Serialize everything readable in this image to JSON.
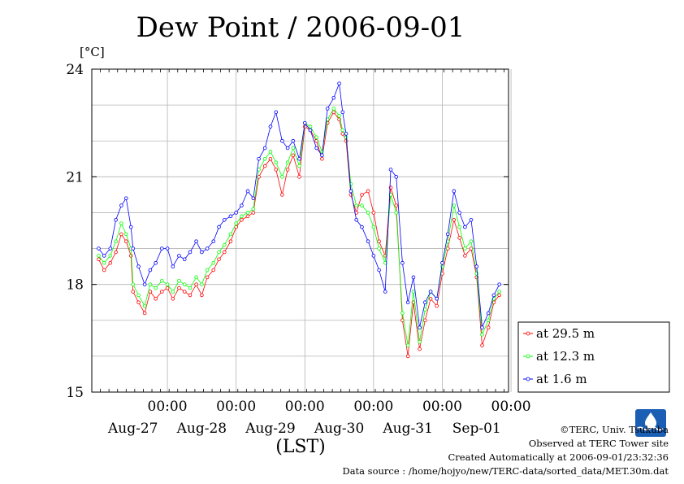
{
  "chart_data": {
    "type": "line",
    "title": "Dew Point / 2006-09-01",
    "ylabel": "[°C]",
    "xlabel": "(LST)",
    "ylim": [
      15,
      24
    ],
    "yticks": [
      15,
      18,
      21,
      24
    ],
    "xlim": [
      0,
      6
    ],
    "day_ticks": [
      {
        "x": 1,
        "time": "00:00",
        "date": "Aug-27"
      },
      {
        "x": 2,
        "time": "00:00",
        "date": "Aug-28"
      },
      {
        "x": 3,
        "time": "00:00",
        "date": "Aug-29"
      },
      {
        "x": 4,
        "time": "00:00",
        "date": "Aug-30"
      },
      {
        "x": 5,
        "time": "00:00",
        "date": "Aug-31"
      },
      {
        "x": 6,
        "time": "00:00",
        "date": "Sep-01"
      }
    ],
    "grid": true,
    "legend_position": "bottom-right-outside",
    "series": [
      {
        "name": "at 29.5 m",
        "color": "#ff0000",
        "points": [
          [
            0.0,
            18.7
          ],
          [
            0.08,
            18.4
          ],
          [
            0.17,
            18.6
          ],
          [
            0.25,
            18.9
          ],
          [
            0.33,
            19.4
          ],
          [
            0.4,
            19.2
          ],
          [
            0.47,
            18.8
          ],
          [
            0.5,
            17.8
          ],
          [
            0.58,
            17.5
          ],
          [
            0.67,
            17.2
          ],
          [
            0.75,
            17.8
          ],
          [
            0.83,
            17.6
          ],
          [
            0.92,
            17.8
          ],
          [
            1.0,
            17.9
          ],
          [
            1.08,
            17.6
          ],
          [
            1.17,
            17.9
          ],
          [
            1.25,
            17.8
          ],
          [
            1.33,
            17.7
          ],
          [
            1.42,
            18.0
          ],
          [
            1.5,
            17.7
          ],
          [
            1.58,
            18.2
          ],
          [
            1.67,
            18.4
          ],
          [
            1.75,
            18.7
          ],
          [
            1.83,
            18.9
          ],
          [
            1.92,
            19.2
          ],
          [
            2.0,
            19.6
          ],
          [
            2.08,
            19.8
          ],
          [
            2.17,
            19.9
          ],
          [
            2.25,
            20.0
          ],
          [
            2.33,
            21.0
          ],
          [
            2.42,
            21.3
          ],
          [
            2.5,
            21.5
          ],
          [
            2.58,
            21.2
          ],
          [
            2.67,
            20.5
          ],
          [
            2.75,
            21.2
          ],
          [
            2.83,
            21.6
          ],
          [
            2.92,
            21.0
          ],
          [
            3.0,
            22.4
          ],
          [
            3.08,
            22.3
          ],
          [
            3.17,
            22.0
          ],
          [
            3.25,
            21.5
          ],
          [
            3.33,
            22.5
          ],
          [
            3.42,
            22.8
          ],
          [
            3.5,
            22.6
          ],
          [
            3.55,
            22.2
          ],
          [
            3.6,
            22.0
          ],
          [
            3.67,
            20.5
          ],
          [
            3.75,
            20.0
          ],
          [
            3.83,
            20.5
          ],
          [
            3.92,
            20.6
          ],
          [
            4.0,
            20.0
          ],
          [
            4.08,
            19.2
          ],
          [
            4.17,
            18.8
          ],
          [
            4.25,
            20.7
          ],
          [
            4.33,
            20.2
          ],
          [
            4.42,
            17.0
          ],
          [
            4.5,
            16.0
          ],
          [
            4.58,
            17.5
          ],
          [
            4.67,
            16.2
          ],
          [
            4.75,
            17.0
          ],
          [
            4.83,
            17.6
          ],
          [
            4.92,
            17.4
          ],
          [
            5.0,
            18.3
          ],
          [
            5.08,
            19.0
          ],
          [
            5.17,
            19.8
          ],
          [
            5.25,
            19.3
          ],
          [
            5.33,
            18.8
          ],
          [
            5.42,
            19.0
          ],
          [
            5.5,
            18.2
          ],
          [
            5.58,
            16.3
          ],
          [
            5.67,
            16.8
          ],
          [
            5.75,
            17.5
          ],
          [
            5.83,
            17.7
          ]
        ]
      },
      {
        "name": "at 12.3 m",
        "color": "#00ff00",
        "points": [
          [
            0.0,
            18.8
          ],
          [
            0.08,
            18.6
          ],
          [
            0.17,
            18.8
          ],
          [
            0.25,
            19.2
          ],
          [
            0.33,
            19.7
          ],
          [
            0.4,
            19.4
          ],
          [
            0.47,
            19.0
          ],
          [
            0.5,
            18.0
          ],
          [
            0.58,
            17.7
          ],
          [
            0.67,
            17.4
          ],
          [
            0.75,
            18.0
          ],
          [
            0.83,
            17.9
          ],
          [
            0.92,
            18.1
          ],
          [
            1.0,
            18.0
          ],
          [
            1.08,
            17.8
          ],
          [
            1.17,
            18.1
          ],
          [
            1.25,
            18.0
          ],
          [
            1.33,
            17.9
          ],
          [
            1.42,
            18.2
          ],
          [
            1.5,
            18.0
          ],
          [
            1.58,
            18.4
          ],
          [
            1.67,
            18.6
          ],
          [
            1.75,
            18.9
          ],
          [
            1.83,
            19.1
          ],
          [
            1.92,
            19.4
          ],
          [
            2.0,
            19.7
          ],
          [
            2.08,
            19.9
          ],
          [
            2.17,
            20.0
          ],
          [
            2.25,
            20.1
          ],
          [
            2.33,
            21.2
          ],
          [
            2.42,
            21.5
          ],
          [
            2.5,
            21.7
          ],
          [
            2.58,
            21.4
          ],
          [
            2.67,
            21.0
          ],
          [
            2.75,
            21.4
          ],
          [
            2.83,
            21.8
          ],
          [
            2.92,
            21.3
          ],
          [
            3.0,
            22.5
          ],
          [
            3.08,
            22.4
          ],
          [
            3.17,
            22.1
          ],
          [
            3.25,
            21.7
          ],
          [
            3.33,
            22.6
          ],
          [
            3.42,
            22.9
          ],
          [
            3.5,
            22.7
          ],
          [
            3.55,
            22.3
          ],
          [
            3.6,
            22.1
          ],
          [
            3.67,
            20.8
          ],
          [
            3.75,
            20.2
          ],
          [
            3.83,
            20.2
          ],
          [
            3.92,
            20.0
          ],
          [
            4.0,
            19.6
          ],
          [
            4.08,
            19.0
          ],
          [
            4.17,
            18.6
          ],
          [
            4.25,
            20.5
          ],
          [
            4.33,
            20.0
          ],
          [
            4.42,
            17.2
          ],
          [
            4.5,
            16.3
          ],
          [
            4.58,
            17.8
          ],
          [
            4.67,
            16.4
          ],
          [
            4.75,
            17.3
          ],
          [
            4.83,
            17.8
          ],
          [
            4.92,
            17.6
          ],
          [
            5.0,
            18.5
          ],
          [
            5.08,
            19.2
          ],
          [
            5.17,
            20.2
          ],
          [
            5.25,
            19.6
          ],
          [
            5.33,
            19.0
          ],
          [
            5.42,
            19.2
          ],
          [
            5.5,
            18.3
          ],
          [
            5.58,
            16.6
          ],
          [
            5.67,
            17.0
          ],
          [
            5.75,
            17.6
          ],
          [
            5.83,
            17.8
          ]
        ]
      },
      {
        "name": "at 1.6 m",
        "color": "#0000ff",
        "points": [
          [
            0.0,
            19.0
          ],
          [
            0.08,
            18.8
          ],
          [
            0.17,
            19.0
          ],
          [
            0.25,
            19.8
          ],
          [
            0.33,
            20.2
          ],
          [
            0.4,
            20.4
          ],
          [
            0.47,
            19.6
          ],
          [
            0.5,
            19.0
          ],
          [
            0.58,
            18.5
          ],
          [
            0.67,
            18.0
          ],
          [
            0.75,
            18.4
          ],
          [
            0.83,
            18.6
          ],
          [
            0.92,
            19.0
          ],
          [
            1.0,
            19.0
          ],
          [
            1.08,
            18.5
          ],
          [
            1.17,
            18.8
          ],
          [
            1.25,
            18.7
          ],
          [
            1.33,
            18.9
          ],
          [
            1.42,
            19.2
          ],
          [
            1.5,
            18.9
          ],
          [
            1.58,
            19.0
          ],
          [
            1.67,
            19.2
          ],
          [
            1.75,
            19.6
          ],
          [
            1.83,
            19.8
          ],
          [
            1.92,
            19.9
          ],
          [
            2.0,
            20.0
          ],
          [
            2.08,
            20.2
          ],
          [
            2.17,
            20.6
          ],
          [
            2.25,
            20.4
          ],
          [
            2.33,
            21.5
          ],
          [
            2.42,
            21.8
          ],
          [
            2.5,
            22.4
          ],
          [
            2.58,
            22.8
          ],
          [
            2.67,
            22.0
          ],
          [
            2.75,
            21.8
          ],
          [
            2.83,
            22.0
          ],
          [
            2.92,
            21.5
          ],
          [
            3.0,
            22.5
          ],
          [
            3.08,
            22.3
          ],
          [
            3.17,
            21.8
          ],
          [
            3.25,
            21.6
          ],
          [
            3.33,
            22.9
          ],
          [
            3.42,
            23.2
          ],
          [
            3.5,
            23.6
          ],
          [
            3.55,
            22.8
          ],
          [
            3.6,
            22.2
          ],
          [
            3.67,
            20.6
          ],
          [
            3.75,
            19.8
          ],
          [
            3.83,
            19.6
          ],
          [
            3.92,
            19.2
          ],
          [
            4.0,
            18.8
          ],
          [
            4.08,
            18.4
          ],
          [
            4.17,
            17.8
          ],
          [
            4.25,
            21.2
          ],
          [
            4.33,
            21.0
          ],
          [
            4.42,
            18.6
          ],
          [
            4.5,
            17.5
          ],
          [
            4.58,
            18.2
          ],
          [
            4.67,
            16.8
          ],
          [
            4.75,
            17.5
          ],
          [
            4.83,
            17.8
          ],
          [
            4.92,
            17.6
          ],
          [
            5.0,
            18.6
          ],
          [
            5.08,
            19.4
          ],
          [
            5.17,
            20.6
          ],
          [
            5.25,
            20.0
          ],
          [
            5.33,
            19.6
          ],
          [
            5.42,
            19.8
          ],
          [
            5.5,
            18.5
          ],
          [
            5.58,
            16.8
          ],
          [
            5.67,
            17.2
          ],
          [
            5.75,
            17.7
          ],
          [
            5.83,
            18.0
          ]
        ]
      }
    ]
  },
  "footer": {
    "copyright": "©TERC, Univ. Tsukuba",
    "observed": "Observed at TERC Tower site",
    "created": "Created Automatically at 2006-09-01/23:32:36",
    "source": "Data source : /home/hojyo/new/TERC-data/sorted_data/MET.30m.dat"
  },
  "logo_text": "TERC"
}
